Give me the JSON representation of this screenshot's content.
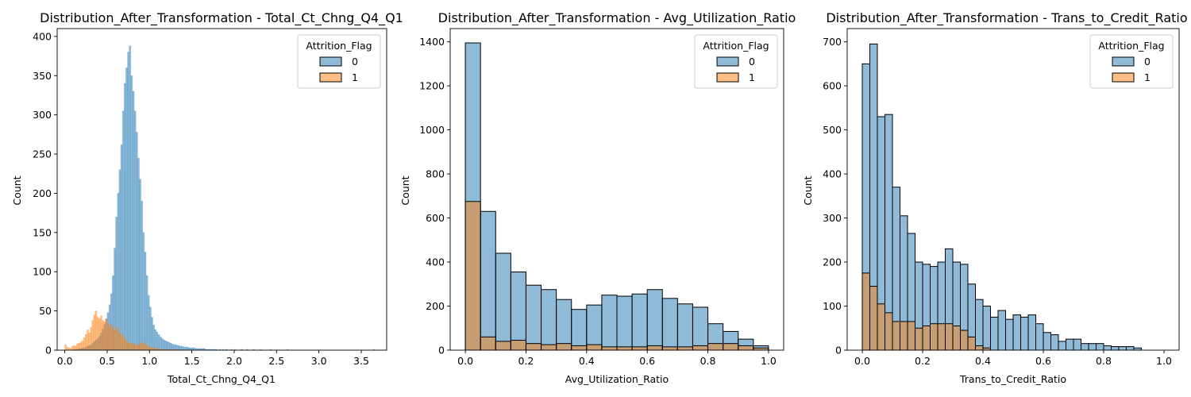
{
  "colors": {
    "class0_fill": "#1f77b4",
    "class1_fill": "#ff7f0e",
    "edge": "#000000"
  },
  "chart_data": [
    {
      "type": "bar",
      "subtype": "histogram",
      "title": "Distribution_After_Transformation - Total_Ct_Chng_Q4_Q1",
      "xlabel": "Total_Ct_Chng_Q4_Q1",
      "ylabel": "Count",
      "xlim": [
        -0.09,
        3.8
      ],
      "ylim": [
        0,
        410
      ],
      "xticks": [
        0.0,
        0.5,
        1.0,
        1.5,
        2.0,
        2.5,
        3.0,
        3.5
      ],
      "xtick_labels": [
        "0.0",
        "0.5",
        "1.0",
        "1.5",
        "2.0",
        "2.5",
        "3.0",
        "3.5"
      ],
      "yticks": [
        0,
        50,
        100,
        150,
        200,
        250,
        300,
        350,
        400
      ],
      "bin_start": 0.0,
      "bin_width": 0.02,
      "bar_edges": false,
      "legend": {
        "title": "Attrition_Flag",
        "entries": [
          "0",
          "1"
        ],
        "position": "top-right"
      },
      "series": [
        {
          "label": "0",
          "values": [
            0,
            0,
            0,
            0,
            0,
            1,
            1,
            1,
            2,
            2,
            3,
            3,
            4,
            5,
            6,
            7,
            9,
            11,
            13,
            15,
            18,
            22,
            27,
            33,
            40,
            48,
            58,
            72,
            95,
            130,
            170,
            200,
            230,
            262,
            305,
            340,
            360,
            380,
            388,
            350,
            330,
            305,
            278,
            245,
            218,
            190,
            150,
            125,
            95,
            70,
            55,
            42,
            32,
            26,
            23,
            20,
            17,
            15,
            13,
            12,
            11,
            10,
            9,
            8,
            7,
            7,
            6,
            6,
            5,
            5,
            4,
            4,
            4,
            3,
            3,
            3,
            3,
            2,
            2,
            2,
            2,
            2,
            2,
            1,
            1,
            1,
            1,
            1,
            1,
            1,
            0,
            1,
            0,
            1,
            0,
            1,
            0,
            0,
            1,
            0,
            1,
            0,
            0,
            0,
            1,
            0,
            0,
            1,
            0,
            0,
            0,
            1,
            0,
            0,
            0,
            1,
            0,
            0,
            0,
            0,
            0,
            1,
            0,
            0,
            0,
            0,
            0,
            0,
            0,
            0,
            0,
            1,
            0,
            0,
            0,
            0,
            0,
            0,
            0,
            0,
            0,
            0,
            0,
            0,
            0,
            0,
            0,
            0,
            0,
            0,
            0,
            0,
            0,
            0,
            0,
            0,
            0,
            0,
            0,
            0,
            0,
            0,
            0,
            0,
            0,
            0,
            0,
            0,
            0,
            0,
            0,
            0,
            0,
            0,
            0,
            0,
            0,
            0,
            0,
            0,
            0,
            0,
            1,
            0,
            0,
            0,
            0,
            0,
            0,
            0,
            0,
            0
          ]
        },
        {
          "label": "1",
          "values": [
            7,
            4,
            3,
            2,
            5,
            6,
            5,
            8,
            9,
            10,
            12,
            16,
            20,
            26,
            22,
            29,
            38,
            45,
            50,
            42,
            40,
            44,
            38,
            36,
            40,
            35,
            30,
            33,
            28,
            25,
            30,
            27,
            22,
            18,
            20,
            15,
            12,
            10,
            9,
            8,
            9,
            7,
            6,
            7,
            8,
            9,
            10,
            8,
            6,
            5,
            4,
            3,
            3,
            2,
            2,
            2,
            1,
            1,
            1,
            1,
            1,
            1,
            1,
            0,
            1,
            0,
            1,
            0,
            1,
            0,
            0,
            0,
            0,
            0,
            0,
            0,
            0,
            0,
            0,
            0,
            0,
            0,
            0,
            0,
            0,
            0,
            0,
            0,
            0,
            0,
            0,
            0,
            0,
            0,
            0,
            0,
            0,
            0,
            0,
            0,
            0,
            0,
            0,
            0,
            0,
            0,
            0,
            0,
            0,
            0,
            0,
            0,
            0,
            0,
            0,
            0,
            0,
            0,
            0,
            0,
            0,
            0,
            0,
            0,
            0,
            0,
            0,
            0,
            0,
            0,
            0,
            0,
            0,
            0,
            0,
            0,
            0,
            0,
            0,
            0,
            0,
            0,
            0,
            0,
            0,
            0,
            0,
            0,
            0,
            0,
            0,
            0,
            0,
            0,
            0,
            0,
            0,
            0,
            0,
            0,
            0,
            0,
            0,
            0,
            0,
            0,
            0,
            0,
            0,
            0,
            0,
            0,
            0,
            0,
            0,
            0,
            0,
            0,
            0,
            0,
            0,
            0,
            0,
            0,
            0,
            0,
            0,
            0
          ]
        }
      ]
    },
    {
      "type": "bar",
      "subtype": "histogram",
      "title": "Distribution_After_Transformation - Avg_Utilization_Ratio",
      "xlabel": "Avg_Utilization_Ratio",
      "ylabel": "Count",
      "xlim": [
        -0.05,
        1.05
      ],
      "ylim": [
        0,
        1460
      ],
      "xticks": [
        0.0,
        0.2,
        0.4,
        0.6,
        0.8,
        1.0
      ],
      "xtick_labels": [
        "0.0",
        "0.2",
        "0.4",
        "0.6",
        "0.8",
        "1.0"
      ],
      "yticks": [
        0,
        200,
        400,
        600,
        800,
        1000,
        1200,
        1400
      ],
      "bin_start": 0.0,
      "bin_width": 0.05,
      "bar_edges": true,
      "legend": {
        "title": "Attrition_Flag",
        "entries": [
          "0",
          "1"
        ],
        "position": "top-right"
      },
      "series": [
        {
          "label": "0",
          "values": [
            1395,
            630,
            440,
            355,
            295,
            275,
            230,
            185,
            205,
            250,
            245,
            255,
            275,
            235,
            210,
            195,
            120,
            85,
            50,
            20
          ]
        },
        {
          "label": "1",
          "values": [
            675,
            60,
            40,
            45,
            30,
            25,
            30,
            20,
            25,
            15,
            15,
            15,
            20,
            15,
            15,
            20,
            30,
            30,
            20,
            10
          ]
        }
      ]
    },
    {
      "type": "bar",
      "subtype": "histogram",
      "title": "Distribution_After_Transformation - Trans_to_Credit_Ratio",
      "xlabel": "Trans_to_Credit_Ratio",
      "ylabel": "Count",
      "xlim": [
        -0.05,
        1.05
      ],
      "ylim": [
        0,
        730
      ],
      "xticks": [
        0.0,
        0.2,
        0.4,
        0.6,
        0.8,
        1.0
      ],
      "xtick_labels": [
        "0.0",
        "0.2",
        "0.4",
        "0.6",
        "0.8",
        "1.0"
      ],
      "yticks": [
        0,
        100,
        200,
        300,
        400,
        500,
        600,
        700
      ],
      "bin_start": 0.0,
      "bin_width": 0.025,
      "bar_edges": true,
      "legend": {
        "title": "Attrition_Flag",
        "entries": [
          "0",
          "1"
        ],
        "position": "top-right"
      },
      "series": [
        {
          "label": "0",
          "values": [
            650,
            695,
            530,
            535,
            370,
            305,
            265,
            200,
            195,
            190,
            200,
            230,
            200,
            195,
            150,
            115,
            100,
            75,
            90,
            70,
            80,
            75,
            80,
            60,
            40,
            35,
            20,
            25,
            25,
            15,
            15,
            15,
            10,
            8,
            8,
            8,
            5,
            0,
            0,
            0
          ]
        },
        {
          "label": "1",
          "values": [
            175,
            145,
            105,
            85,
            65,
            65,
            65,
            50,
            55,
            60,
            60,
            60,
            55,
            45,
            30,
            10,
            5,
            0,
            0,
            0,
            0,
            0,
            0,
            0,
            0,
            0,
            0,
            0,
            0,
            0,
            0,
            0,
            0,
            0,
            0,
            0,
            0,
            0,
            0,
            0
          ]
        }
      ]
    }
  ]
}
